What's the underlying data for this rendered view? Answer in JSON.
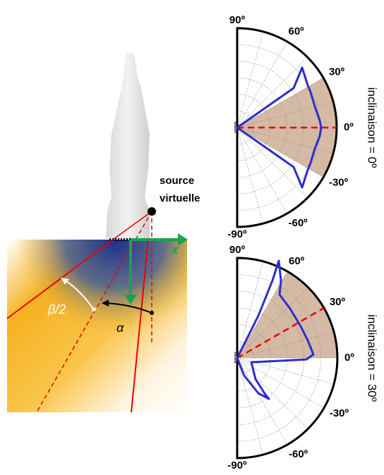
{
  "probe": {
    "source_line1": "source",
    "source_line2": "virtuelle",
    "x_axis": "x",
    "z_axis": "z",
    "half_aperture": "β/2",
    "steering": "α"
  },
  "polar_plots": [
    {
      "angle_labels": [
        "90º",
        "60º",
        "30º",
        "0º",
        "-30º",
        "-60º",
        "-90º"
      ],
      "caption": "inclinaison = 0º"
    },
    {
      "angle_labels": [
        "90º",
        "60º",
        "30º",
        "0º",
        "-30º",
        "-60º",
        "-90º"
      ],
      "caption": "inclinaison = 30º"
    }
  ]
}
